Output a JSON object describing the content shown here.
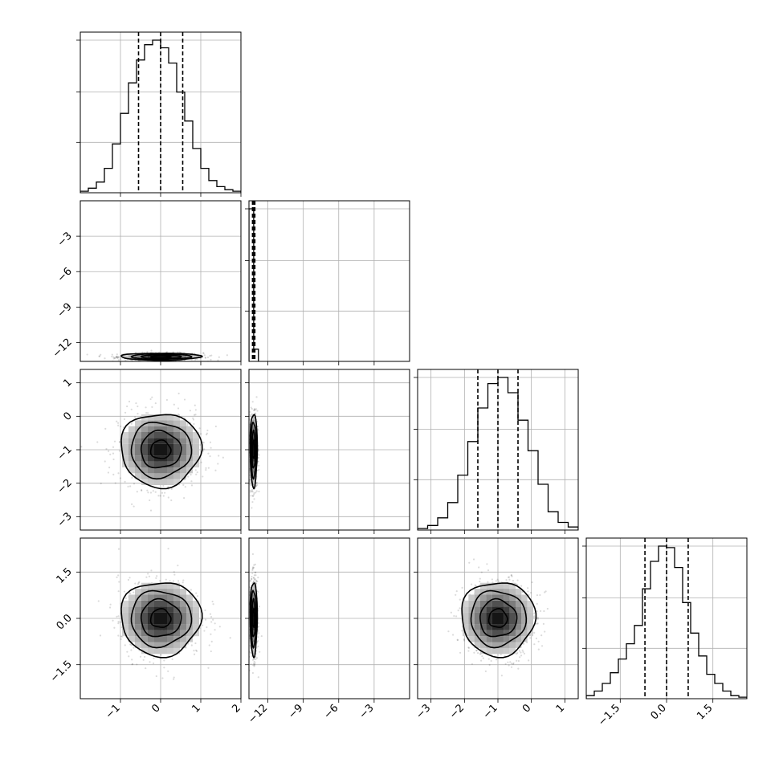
{
  "chart_data": {
    "type": "corner",
    "grid": true,
    "parameters": [
      {
        "range": [
          -2,
          2
        ],
        "ticks": [
          -1,
          0,
          1,
          2
        ],
        "tick_labels": [
          "−1",
          "0",
          "1",
          "2"
        ],
        "mean": 0.0,
        "sd": 0.5,
        "quantiles": [
          -0.55,
          0.0,
          0.55
        ]
      },
      {
        "range": [
          -13.6,
          0
        ],
        "ticks": [
          -12,
          -9,
          -6,
          -3
        ],
        "tick_labels": [
          "−12",
          "−9",
          "−6",
          "−3"
        ],
        "mean": -13.2,
        "sd": 0.15,
        "quantiles": [
          -13.3,
          -13.2,
          -13.1
        ]
      },
      {
        "range": [
          -3.4,
          1.4
        ],
        "ticks": [
          -3,
          -2,
          -1,
          0,
          1
        ],
        "tick_labels": [
          "−3",
          "−2",
          "−1",
          "0",
          "1"
        ],
        "mean": -1.0,
        "sd": 0.55,
        "quantiles": [
          -1.6,
          -1.0,
          -0.4
        ]
      },
      {
        "range": [
          -2.6,
          2.6
        ],
        "ticks": [
          -1.5,
          0.0,
          1.5
        ],
        "tick_labels": [
          "−1.5",
          "0.0",
          "1.5"
        ],
        "mean": 0.0,
        "sd": 0.6,
        "quantiles": [
          -0.7,
          0.0,
          0.7
        ]
      }
    ],
    "diagonal_histograms": [
      {
        "panel": "p0",
        "bin_edges": [
          -2.0,
          -1.8,
          -1.6,
          -1.4,
          -1.2,
          -1.0,
          -0.8,
          -0.6,
          -0.4,
          -0.2,
          0.0,
          0.2,
          0.4,
          0.6,
          0.8,
          1.0,
          1.2,
          1.4,
          1.6,
          1.8,
          2.0
        ],
        "counts": [
          0.01,
          0.03,
          0.07,
          0.16,
          0.32,
          0.52,
          0.72,
          0.87,
          0.97,
          1.0,
          0.95,
          0.85,
          0.66,
          0.47,
          0.29,
          0.16,
          0.08,
          0.04,
          0.02,
          0.01
        ]
      },
      {
        "panel": "p1",
        "bin_edges": [
          -13.6,
          -13.2,
          -12.8
        ],
        "counts": [
          1.0,
          0.08
        ]
      },
      {
        "panel": "p2",
        "bin_edges": [
          -3.4,
          -3.1,
          -2.8,
          -2.5,
          -2.2,
          -1.9,
          -1.6,
          -1.3,
          -1.0,
          -0.7,
          -0.4,
          -0.1,
          0.2,
          0.5,
          0.8,
          1.1,
          1.4
        ],
        "counts": [
          0.01,
          0.03,
          0.08,
          0.18,
          0.36,
          0.58,
          0.8,
          0.96,
          1.0,
          0.9,
          0.72,
          0.52,
          0.3,
          0.12,
          0.05,
          0.02
        ]
      },
      {
        "panel": "p3",
        "bin_edges": [
          -2.6,
          -2.34,
          -2.08,
          -1.82,
          -1.56,
          -1.3,
          -1.04,
          -0.78,
          -0.52,
          -0.26,
          0.0,
          0.26,
          0.52,
          0.78,
          1.04,
          1.3,
          1.56,
          1.82,
          2.08,
          2.34,
          2.6
        ],
        "counts": [
          0.02,
          0.05,
          0.1,
          0.17,
          0.26,
          0.36,
          0.48,
          0.72,
          0.9,
          1.0,
          0.99,
          0.86,
          0.63,
          0.43,
          0.28,
          0.16,
          0.1,
          0.05,
          0.02,
          0.01
        ]
      }
    ],
    "panels": [
      {
        "id": "p0",
        "row": 0,
        "col": 0,
        "kind": "hist"
      },
      {
        "id": "p1",
        "row": 1,
        "col": 1,
        "kind": "hist"
      },
      {
        "id": "p2",
        "row": 2,
        "col": 2,
        "kind": "hist"
      },
      {
        "id": "p3",
        "row": 3,
        "col": 3,
        "kind": "hist"
      },
      {
        "id": "p10",
        "row": 1,
        "col": 0,
        "kind": "density",
        "x_param": 0,
        "y_param": 1
      },
      {
        "id": "p20",
        "row": 2,
        "col": 0,
        "kind": "density",
        "x_param": 0,
        "y_param": 2
      },
      {
        "id": "p21",
        "row": 2,
        "col": 1,
        "kind": "density",
        "x_param": 1,
        "y_param": 2
      },
      {
        "id": "p30",
        "row": 3,
        "col": 0,
        "kind": "density",
        "x_param": 0,
        "y_param": 3
      },
      {
        "id": "p31",
        "row": 3,
        "col": 1,
        "kind": "density",
        "x_param": 1,
        "y_param": 3
      },
      {
        "id": "p32",
        "row": 3,
        "col": 2,
        "kind": "density",
        "x_param": 2,
        "y_param": 3
      }
    ],
    "contour_levels_sigma": [
      0.5,
      1.0,
      1.5,
      2.0
    ],
    "colors": {
      "ink": "#000000",
      "grid": "#b0b0b0",
      "density_dark": "#111111",
      "density_light": "#f4f4f4"
    }
  }
}
